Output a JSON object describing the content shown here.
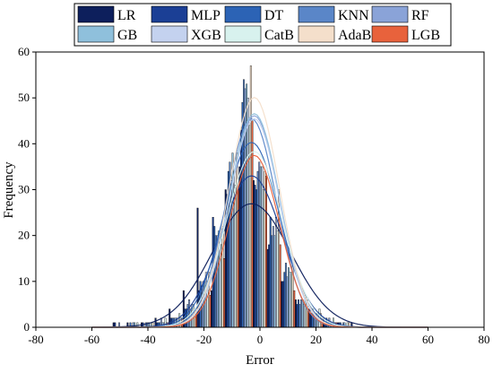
{
  "chart_data": {
    "type": "histogram",
    "xlabel": "Error",
    "ylabel": "Frequency",
    "xlim": [
      -80,
      80
    ],
    "ylim": [
      0,
      60
    ],
    "xticks": [
      -80,
      -60,
      -40,
      -20,
      0,
      20,
      40,
      60,
      80
    ],
    "yticks": [
      0,
      10,
      20,
      30,
      40,
      50,
      60
    ],
    "grid": false,
    "legend_position": "top",
    "bin_centers": [
      -50,
      -45,
      -40,
      -35,
      -30,
      -25,
      -20,
      -15,
      -10,
      -5,
      0,
      5,
      10,
      15,
      20,
      25,
      30,
      35
    ],
    "series": [
      {
        "name": "LR",
        "color": "#0d1f5c",
        "values": [
          1,
          1,
          1,
          2,
          4,
          8,
          26,
          8,
          30,
          35,
          32,
          17,
          10,
          6,
          4,
          2,
          1,
          1
        ],
        "fit": {
          "mean": -3,
          "sd": 14
        }
      },
      {
        "name": "MLP",
        "color": "#1b3f95",
        "values": [
          1,
          0,
          1,
          1,
          2,
          4,
          8,
          24,
          29,
          43,
          31,
          18,
          10,
          5,
          3,
          1,
          1,
          0
        ],
        "fit": {
          "mean": -3,
          "sd": 11
        }
      },
      {
        "name": "DT",
        "color": "#2c63b5",
        "values": [
          0,
          1,
          0,
          1,
          2,
          4,
          10,
          22,
          34,
          49,
          30,
          24,
          12,
          6,
          4,
          2,
          1,
          0
        ],
        "fit": {
          "mean": -3,
          "sd": 10
        }
      },
      {
        "name": "KNN",
        "color": "#5a86c8",
        "values": [
          0,
          0,
          1,
          1,
          2,
          5,
          9,
          20,
          36,
          54,
          34,
          20,
          14,
          5,
          3,
          1,
          0,
          0
        ],
        "fit": {
          "mean": -3,
          "sd": 9
        }
      },
      {
        "name": "RF",
        "color": "#8aa3d8",
        "values": [
          1,
          1,
          1,
          2,
          2,
          6,
          10,
          20,
          32,
          52,
          36,
          22,
          11,
          6,
          3,
          2,
          1,
          0
        ],
        "fit": {
          "mean": -2,
          "sd": 9
        }
      },
      {
        "name": "GB",
        "color": "#8fc0dc",
        "values": [
          0,
          1,
          1,
          1,
          2,
          4,
          10,
          21,
          38,
          53,
          35,
          20,
          13,
          6,
          3,
          1,
          1,
          0
        ],
        "fit": {
          "mean": -2,
          "sd": 9
        }
      },
      {
        "name": "XGB",
        "color": "#c4d2ef",
        "values": [
          0,
          0,
          1,
          1,
          2,
          5,
          12,
          20,
          34,
          50,
          35,
          24,
          12,
          5,
          3,
          1,
          0,
          0
        ],
        "fit": {
          "mean": -2,
          "sd": 9
        }
      },
      {
        "name": "CatB",
        "color": "#d8f2ee",
        "values": [
          0,
          1,
          1,
          2,
          3,
          5,
          10,
          18,
          31,
          44,
          30,
          21,
          12,
          7,
          4,
          2,
          1,
          0
        ],
        "fit": {
          "mean": -2,
          "sd": 10
        }
      },
      {
        "name": "AdaB",
        "color": "#f4dfcb",
        "values": [
          0,
          0,
          1,
          1,
          2,
          4,
          12,
          22,
          38,
          57,
          34,
          30,
          14,
          6,
          3,
          1,
          1,
          0
        ],
        "fit": {
          "mean": -2,
          "sd": 9
        }
      },
      {
        "name": "LGB",
        "color": "#e8623c",
        "values": [
          0,
          0,
          0,
          1,
          2,
          3,
          7,
          15,
          30,
          45,
          33,
          18,
          8,
          4,
          2,
          1,
          0,
          0
        ],
        "fit": {
          "mean": -2,
          "sd": 9
        }
      }
    ]
  }
}
